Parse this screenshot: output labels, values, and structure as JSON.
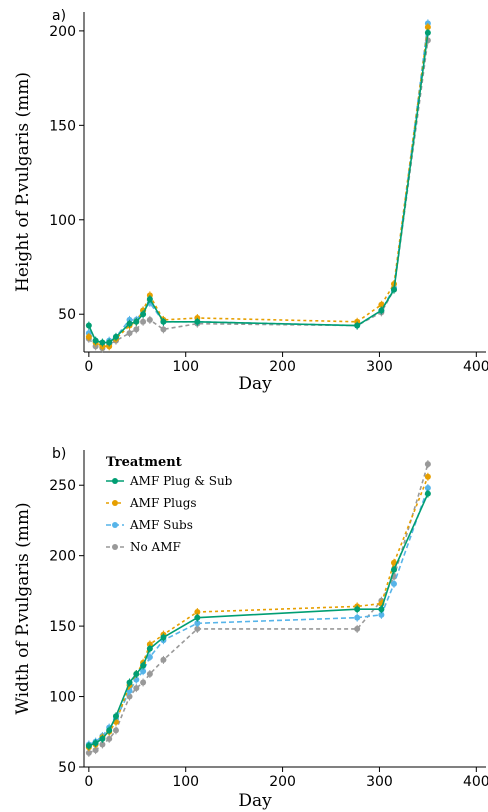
{
  "chart_data": [
    {
      "panel_label": "a)",
      "type": "line",
      "xlabel": "Day",
      "ylabel": "Height of P.vulgaris (mm)",
      "xlim": [
        -5,
        410
      ],
      "ylim": [
        30,
        210
      ],
      "xticks": [
        0,
        100,
        200,
        300,
        400
      ],
      "yticks": [
        50,
        100,
        150,
        200
      ],
      "grid": false,
      "legend": null,
      "series": [
        {
          "name": "No AMF",
          "color": "#999999",
          "dash": "4,3",
          "x": [
            0,
            7,
            14,
            21,
            28,
            42,
            49,
            56,
            63,
            77,
            112,
            277,
            302,
            315,
            350
          ],
          "y": [
            37,
            33,
            32,
            34,
            36,
            40,
            42,
            46,
            47,
            42,
            45,
            44,
            51,
            63,
            195
          ]
        },
        {
          "name": "AMF Subs",
          "color": "#56B4E9",
          "dash": "5,3",
          "x": [
            0,
            7,
            14,
            21,
            28,
            42,
            49,
            56,
            63,
            77,
            112,
            277,
            302,
            315,
            350
          ],
          "y": [
            40,
            36,
            33,
            36,
            38,
            47,
            47,
            52,
            56,
            46,
            46,
            44,
            52,
            64,
            204
          ]
        },
        {
          "name": "AMF Plugs",
          "color": "#E69F00",
          "dash": "3,3",
          "x": [
            0,
            7,
            14,
            21,
            28,
            42,
            49,
            56,
            63,
            77,
            112,
            277,
            302,
            315,
            350
          ],
          "y": [
            38,
            35,
            33,
            33,
            37,
            44,
            46,
            52,
            60,
            47,
            48,
            46,
            55,
            66,
            202
          ]
        },
        {
          "name": "AMF Plug & Sub",
          "color": "#009E73",
          "dash": "",
          "x": [
            0,
            7,
            14,
            21,
            28,
            42,
            49,
            56,
            63,
            77,
            112,
            277,
            302,
            315,
            350
          ],
          "y": [
            44,
            36,
            35,
            35,
            38,
            45,
            46,
            50,
            58,
            46,
            46,
            44,
            52,
            63,
            199
          ]
        }
      ]
    },
    {
      "panel_label": "b)",
      "type": "line",
      "xlabel": "Day",
      "ylabel": "Width of P.vulgaris (mm)",
      "xlim": [
        -5,
        410
      ],
      "ylim": [
        50,
        275
      ],
      "xticks": [
        0,
        100,
        200,
        300,
        400
      ],
      "yticks": [
        50,
        100,
        150,
        200,
        250
      ],
      "grid": false,
      "legend": {
        "title": "Treatment",
        "position": "top-left",
        "order": [
          "AMF Plug & Sub",
          "AMF Plugs",
          "AMF Subs",
          "No AMF"
        ]
      },
      "series": [
        {
          "name": "No AMF",
          "color": "#999999",
          "dash": "4,3",
          "x": [
            0,
            7,
            14,
            21,
            28,
            42,
            49,
            56,
            63,
            77,
            112,
            277,
            302,
            315,
            350
          ],
          "y": [
            60,
            62,
            66,
            70,
            76,
            100,
            106,
            110,
            116,
            126,
            148,
            148,
            168,
            185,
            265
          ]
        },
        {
          "name": "AMF Subs",
          "color": "#56B4E9",
          "dash": "5,3",
          "x": [
            0,
            7,
            14,
            21,
            28,
            42,
            49,
            56,
            63,
            77,
            112,
            277,
            302,
            315,
            350
          ],
          "y": [
            66,
            68,
            72,
            78,
            84,
            104,
            112,
            118,
            128,
            140,
            152,
            156,
            158,
            180,
            248
          ]
        },
        {
          "name": "AMF Plugs",
          "color": "#E69F00",
          "dash": "3,3",
          "x": [
            0,
            7,
            14,
            21,
            28,
            42,
            49,
            56,
            63,
            77,
            112,
            277,
            302,
            315,
            350
          ],
          "y": [
            64,
            66,
            71,
            75,
            82,
            108,
            116,
            124,
            137,
            144,
            160,
            164,
            166,
            195,
            256
          ]
        },
        {
          "name": "AMF Plug & Sub",
          "color": "#009E73",
          "dash": "",
          "x": [
            0,
            7,
            14,
            21,
            28,
            42,
            49,
            56,
            63,
            77,
            112,
            277,
            302,
            315,
            350
          ],
          "y": [
            65,
            67,
            70,
            76,
            86,
            110,
            116,
            122,
            134,
            142,
            156,
            162,
            162,
            190,
            244
          ]
        }
      ]
    }
  ]
}
